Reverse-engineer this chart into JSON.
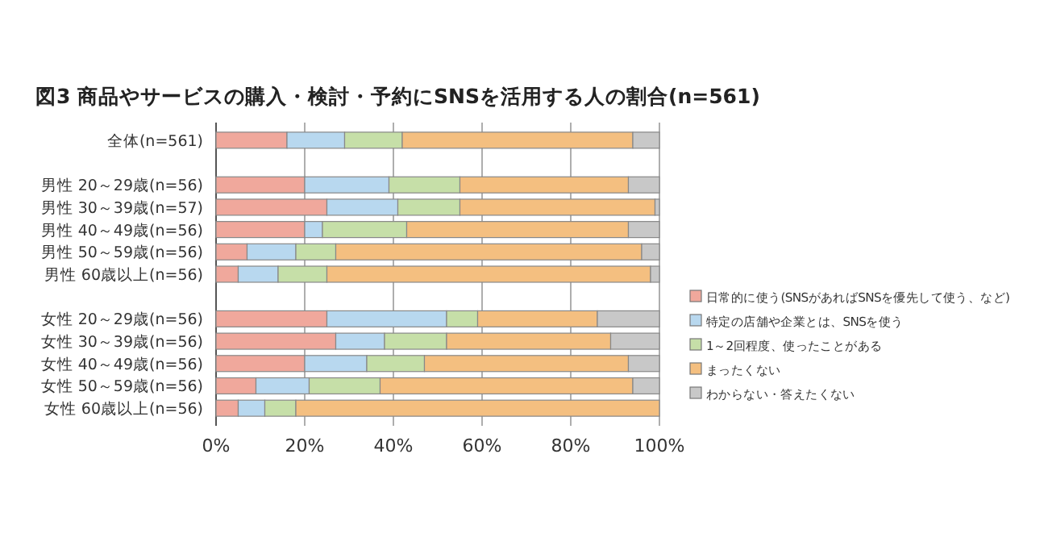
{
  "chart_data": {
    "type": "bar",
    "orientation": "horizontal",
    "stacked": true,
    "title": "図3 商品やサービスの購入・検討・予約にSNSを活用する人の割合(n=561)",
    "categories": [
      "全体(n=561)",
      null,
      "男性 20～29歳(n=56)",
      "男性 30～39歳(n=57)",
      "男性 40～49歳(n=56)",
      "男性 50～59歳(n=56)",
      "男性  60歳以上(n=56)",
      null,
      "女性 20～29歳(n=56)",
      "女性 30～39歳(n=56)",
      "女性 40～49歳(n=56)",
      "女性 50～59歳(n=56)",
      "女性  60歳以上(n=56)"
    ],
    "series": [
      {
        "name": "日常的に使う(SNSがあればSNSを優先して使う、など)",
        "color": "#f0a89c",
        "values": [
          16,
          null,
          20,
          25,
          20,
          7,
          5,
          null,
          25,
          27,
          20,
          9,
          5
        ]
      },
      {
        "name": "特定の店舗や企業とは、SNSを使う",
        "color": "#b8d8ef",
        "values": [
          13,
          null,
          19,
          16,
          4,
          11,
          9,
          null,
          27,
          11,
          14,
          12,
          6
        ]
      },
      {
        "name": "1～2回程度、使ったことがある",
        "color": "#c6dfa8",
        "values": [
          13,
          null,
          16,
          14,
          19,
          9,
          11,
          null,
          7,
          14,
          13,
          16,
          7
        ]
      },
      {
        "name": "まったくない",
        "color": "#f4bf80",
        "values": [
          52,
          null,
          38,
          44,
          50,
          69,
          73,
          null,
          27,
          37,
          46,
          57,
          82
        ]
      },
      {
        "name": "わからない・答えたくない",
        "color": "#c8c8c8",
        "values": [
          6,
          null,
          7,
          1,
          7,
          4,
          2,
          null,
          14,
          11,
          7,
          6,
          0
        ]
      }
    ],
    "xlim": [
      0,
      100
    ],
    "xticks": [
      {
        "value": 0,
        "label": "0%"
      },
      {
        "value": 20,
        "label": "20%"
      },
      {
        "value": 40,
        "label": "40%"
      },
      {
        "value": 60,
        "label": "60%"
      },
      {
        "value": 80,
        "label": "80%"
      },
      {
        "value": 100,
        "label": "100%"
      }
    ],
    "grid": "x",
    "legend": "right"
  }
}
